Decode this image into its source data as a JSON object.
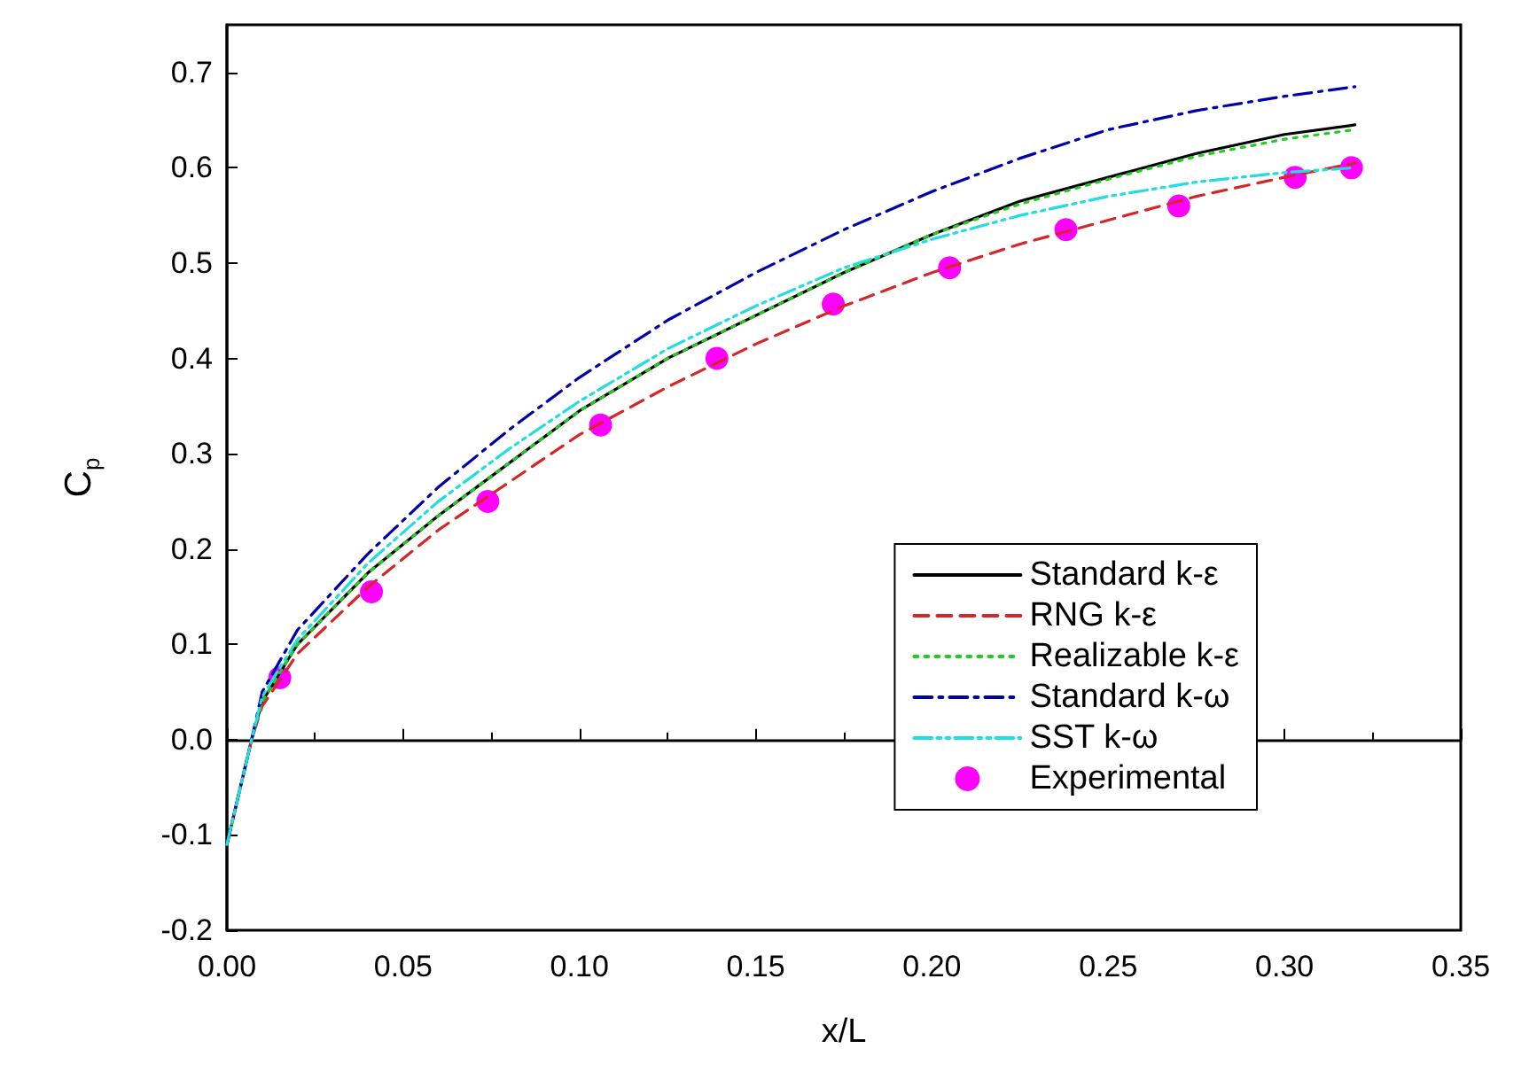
{
  "chart_data": {
    "type": "line",
    "xlabel": "x/L",
    "ylabel": "C$_{p}$",
    "xlim": [
      0,
      0.35
    ],
    "ylim": [
      -0.2,
      0.75
    ],
    "xticks": [
      {
        "value": 0,
        "label": "0.00"
      },
      {
        "value": 0.05,
        "label": "0.05"
      },
      {
        "value": 0.1,
        "label": "0.10"
      },
      {
        "value": 0.15,
        "label": "0.15"
      },
      {
        "value": 0.2,
        "label": "0.20"
      },
      {
        "value": 0.25,
        "label": "0.25"
      },
      {
        "value": 0.3,
        "label": "0.30"
      },
      {
        "value": 0.35,
        "label": "0.35"
      }
    ],
    "yticks": [
      {
        "value": -0.2,
        "label": "-0.2"
      },
      {
        "value": -0.1,
        "label": "-0.1"
      },
      {
        "value": 0,
        "label": "0.0"
      },
      {
        "value": 0.1,
        "label": "0.1"
      },
      {
        "value": 0.2,
        "label": "0.2"
      },
      {
        "value": 0.3,
        "label": "0.3"
      },
      {
        "value": 0.4,
        "label": "0.4"
      },
      {
        "value": 0.5,
        "label": "0.5"
      },
      {
        "value": 0.6,
        "label": "0.6"
      },
      {
        "value": 0.7,
        "label": "0.7"
      }
    ],
    "legend": "bottom right",
    "marker": "none",
    "series": [
      {
        "name": "Standard k-ε",
        "color": "#000000",
        "line_style": "solid",
        "x": [
          0,
          0.007,
          0.01,
          0.02,
          0.04,
          0.06,
          0.08,
          0.1,
          0.125,
          0.15,
          0.175,
          0.2,
          0.225,
          0.25,
          0.275,
          0.3,
          0.32
        ],
        "values": [
          -0.11,
          0.0,
          0.04,
          0.1,
          0.175,
          0.235,
          0.29,
          0.345,
          0.4,
          0.445,
          0.49,
          0.53,
          0.565,
          0.59,
          0.615,
          0.635,
          0.645
        ]
      },
      {
        "name": "RNG k-ε",
        "color": "#d62728",
        "line_style": "dashed",
        "x": [
          0,
          0.007,
          0.01,
          0.02,
          0.04,
          0.06,
          0.08,
          0.1,
          0.125,
          0.15,
          0.175,
          0.2,
          0.225,
          0.25,
          0.275,
          0.3,
          0.32
        ],
        "values": [
          -0.11,
          0.0,
          0.035,
          0.09,
          0.16,
          0.22,
          0.27,
          0.32,
          0.37,
          0.415,
          0.455,
          0.49,
          0.52,
          0.545,
          0.57,
          0.59,
          0.605
        ]
      },
      {
        "name": "Realizable k-ε",
        "color": "#22cc22",
        "line_style": "dotted",
        "x": [
          0,
          0.007,
          0.01,
          0.02,
          0.04,
          0.06,
          0.08,
          0.1,
          0.125,
          0.15,
          0.175,
          0.2,
          0.225,
          0.25,
          0.275,
          0.3,
          0.32
        ],
        "values": [
          -0.11,
          0.0,
          0.04,
          0.1,
          0.175,
          0.235,
          0.29,
          0.345,
          0.4,
          0.445,
          0.49,
          0.53,
          0.562,
          0.588,
          0.612,
          0.63,
          0.64
        ]
      },
      {
        "name": "Standard k-ω",
        "color": "#0000aa",
        "line_style": "dashdot",
        "x": [
          0,
          0.007,
          0.01,
          0.02,
          0.04,
          0.06,
          0.08,
          0.1,
          0.125,
          0.15,
          0.175,
          0.2,
          0.225,
          0.25,
          0.275,
          0.3,
          0.32
        ],
        "values": [
          -0.11,
          0.0,
          0.05,
          0.115,
          0.195,
          0.265,
          0.325,
          0.38,
          0.44,
          0.49,
          0.535,
          0.575,
          0.61,
          0.64,
          0.66,
          0.675,
          0.685
        ]
      },
      {
        "name": "SST k-ω",
        "color": "#22dddd",
        "line_style": "dashdotdot",
        "x": [
          0,
          0.007,
          0.01,
          0.02,
          0.04,
          0.06,
          0.08,
          0.1,
          0.125,
          0.15,
          0.175,
          0.2,
          0.225,
          0.25,
          0.275,
          0.3,
          0.32
        ],
        "values": [
          -0.11,
          0.0,
          0.045,
          0.105,
          0.185,
          0.25,
          0.305,
          0.355,
          0.41,
          0.455,
          0.495,
          0.525,
          0.55,
          0.57,
          0.585,
          0.595,
          0.6
        ]
      },
      {
        "name": "Experimental",
        "type": "scatter",
        "marker": "circle",
        "color": "#ff00ff",
        "x": [
          0.015,
          0.041,
          0.074,
          0.106,
          0.139,
          0.172,
          0.205,
          0.238,
          0.27,
          0.303,
          0.319
        ],
        "values": [
          0.065,
          0.155,
          0.25,
          0.33,
          0.4,
          0.457,
          0.495,
          0.535,
          0.56,
          0.59,
          0.6
        ]
      }
    ]
  }
}
